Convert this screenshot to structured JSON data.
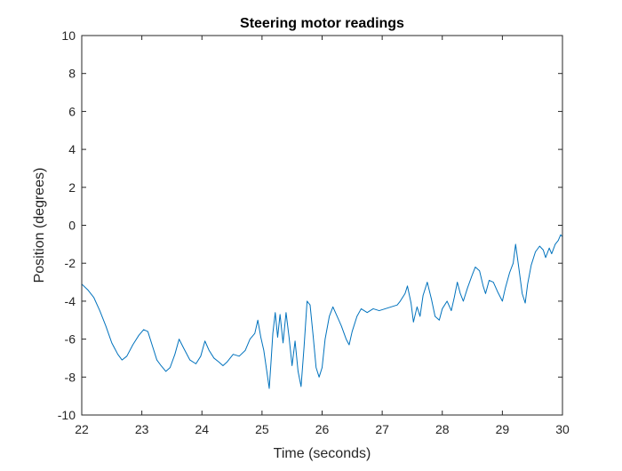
{
  "chart_data": {
    "type": "line",
    "title": "Steering motor readings",
    "xlabel": "Time (seconds)",
    "ylabel": "Position (degrees)",
    "xlim": [
      22,
      30
    ],
    "ylim": [
      -10,
      10
    ],
    "xticks": [
      22,
      23,
      24,
      25,
      26,
      27,
      28,
      29,
      30
    ],
    "yticks": [
      -10,
      -8,
      -6,
      -4,
      -2,
      0,
      2,
      4,
      6,
      8,
      10
    ],
    "grid": false,
    "line_color": "#0072BD",
    "series": [
      {
        "points": [
          [
            22.0,
            -3.1
          ],
          [
            22.1,
            -3.4
          ],
          [
            22.2,
            -3.8
          ],
          [
            22.3,
            -4.5
          ],
          [
            22.4,
            -5.3
          ],
          [
            22.5,
            -6.2
          ],
          [
            22.6,
            -6.8
          ],
          [
            22.67,
            -7.1
          ],
          [
            22.75,
            -6.9
          ],
          [
            22.85,
            -6.3
          ],
          [
            22.95,
            -5.8
          ],
          [
            23.03,
            -5.5
          ],
          [
            23.1,
            -5.6
          ],
          [
            23.18,
            -6.4
          ],
          [
            23.25,
            -7.1
          ],
          [
            23.32,
            -7.4
          ],
          [
            23.4,
            -7.7
          ],
          [
            23.47,
            -7.5
          ],
          [
            23.55,
            -6.8
          ],
          [
            23.62,
            -6.0
          ],
          [
            23.7,
            -6.5
          ],
          [
            23.8,
            -7.1
          ],
          [
            23.9,
            -7.3
          ],
          [
            23.98,
            -6.9
          ],
          [
            24.05,
            -6.1
          ],
          [
            24.12,
            -6.6
          ],
          [
            24.2,
            -7.0
          ],
          [
            24.28,
            -7.2
          ],
          [
            24.35,
            -7.4
          ],
          [
            24.42,
            -7.2
          ],
          [
            24.52,
            -6.8
          ],
          [
            24.62,
            -6.9
          ],
          [
            24.72,
            -6.6
          ],
          [
            24.8,
            -6.0
          ],
          [
            24.88,
            -5.7
          ],
          [
            24.93,
            -5.0
          ],
          [
            24.98,
            -5.9
          ],
          [
            25.03,
            -6.6
          ],
          [
            25.08,
            -7.7
          ],
          [
            25.12,
            -8.6
          ],
          [
            25.15,
            -7.2
          ],
          [
            25.18,
            -5.7
          ],
          [
            25.22,
            -4.6
          ],
          [
            25.26,
            -5.9
          ],
          [
            25.3,
            -4.7
          ],
          [
            25.35,
            -6.2
          ],
          [
            25.4,
            -4.6
          ],
          [
            25.45,
            -5.9
          ],
          [
            25.5,
            -7.4
          ],
          [
            25.55,
            -6.1
          ],
          [
            25.6,
            -7.7
          ],
          [
            25.65,
            -8.5
          ],
          [
            25.7,
            -6.4
          ],
          [
            25.75,
            -4.0
          ],
          [
            25.8,
            -4.2
          ],
          [
            25.85,
            -5.8
          ],
          [
            25.9,
            -7.5
          ],
          [
            25.95,
            -8.0
          ],
          [
            26.0,
            -7.5
          ],
          [
            26.05,
            -6.0
          ],
          [
            26.12,
            -4.8
          ],
          [
            26.18,
            -4.3
          ],
          [
            26.25,
            -4.8
          ],
          [
            26.32,
            -5.3
          ],
          [
            26.4,
            -6.0
          ],
          [
            26.45,
            -6.3
          ],
          [
            26.5,
            -5.6
          ],
          [
            26.58,
            -4.8
          ],
          [
            26.65,
            -4.4
          ],
          [
            26.75,
            -4.6
          ],
          [
            26.85,
            -4.4
          ],
          [
            26.95,
            -4.5
          ],
          [
            27.05,
            -4.4
          ],
          [
            27.15,
            -4.3
          ],
          [
            27.25,
            -4.2
          ],
          [
            27.3,
            -4.0
          ],
          [
            27.38,
            -3.6
          ],
          [
            27.42,
            -3.2
          ],
          [
            27.48,
            -4.1
          ],
          [
            27.52,
            -5.1
          ],
          [
            27.58,
            -4.3
          ],
          [
            27.63,
            -4.8
          ],
          [
            27.68,
            -3.7
          ],
          [
            27.75,
            -3.0
          ],
          [
            27.82,
            -3.9
          ],
          [
            27.88,
            -4.8
          ],
          [
            27.95,
            -5.0
          ],
          [
            28.0,
            -4.4
          ],
          [
            28.08,
            -4.0
          ],
          [
            28.15,
            -4.5
          ],
          [
            28.2,
            -3.8
          ],
          [
            28.25,
            -3.0
          ],
          [
            28.3,
            -3.6
          ],
          [
            28.35,
            -4.0
          ],
          [
            28.42,
            -3.3
          ],
          [
            28.5,
            -2.6
          ],
          [
            28.55,
            -2.2
          ],
          [
            28.62,
            -2.4
          ],
          [
            28.68,
            -3.2
          ],
          [
            28.72,
            -3.6
          ],
          [
            28.78,
            -2.9
          ],
          [
            28.85,
            -3.0
          ],
          [
            28.92,
            -3.5
          ],
          [
            29.0,
            -4.0
          ],
          [
            29.05,
            -3.3
          ],
          [
            29.12,
            -2.5
          ],
          [
            29.18,
            -2.0
          ],
          [
            29.22,
            -1.0
          ],
          [
            29.28,
            -2.4
          ],
          [
            29.33,
            -3.6
          ],
          [
            29.38,
            -4.1
          ],
          [
            29.42,
            -3.1
          ],
          [
            29.48,
            -2.1
          ],
          [
            29.55,
            -1.4
          ],
          [
            29.62,
            -1.1
          ],
          [
            29.68,
            -1.3
          ],
          [
            29.72,
            -1.7
          ],
          [
            29.78,
            -1.2
          ],
          [
            29.82,
            -1.5
          ],
          [
            29.88,
            -1.0
          ],
          [
            29.93,
            -0.8
          ],
          [
            29.97,
            -0.5
          ],
          [
            30.0,
            -0.6
          ]
        ]
      }
    ]
  }
}
